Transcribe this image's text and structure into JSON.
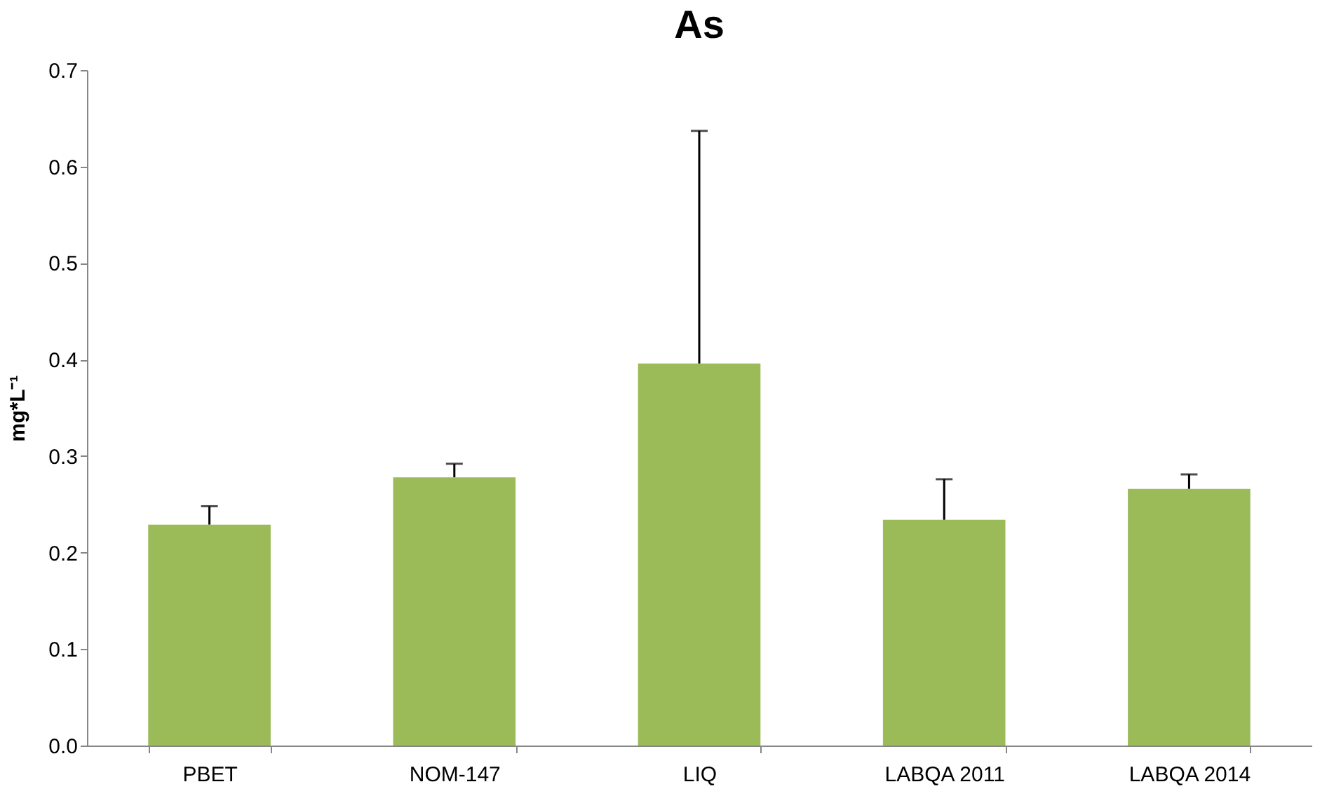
{
  "chart_data": {
    "type": "bar",
    "title": "As",
    "ylabel": "mg*L⁻¹",
    "categories": [
      "PBET",
      "NOM-147",
      "LIQ",
      "LABQA 2011",
      "LABQA 2014"
    ],
    "values": [
      0.229,
      0.278,
      0.396,
      0.234,
      0.266
    ],
    "errors": [
      [
        0.229,
        0.248
      ],
      [
        0.278,
        0.292
      ],
      [
        0.396,
        0.637
      ],
      [
        0.234,
        0.276
      ],
      [
        0.266,
        0.281
      ]
    ],
    "color": "#9bbb59",
    "ylim": [
      0,
      0.7
    ],
    "yticks": [
      {
        "value": 0,
        "label": "0.0"
      },
      0.1,
      0.2,
      0.3,
      0.4,
      0.5,
      0.6,
      0.7
    ],
    "grid": false
  }
}
